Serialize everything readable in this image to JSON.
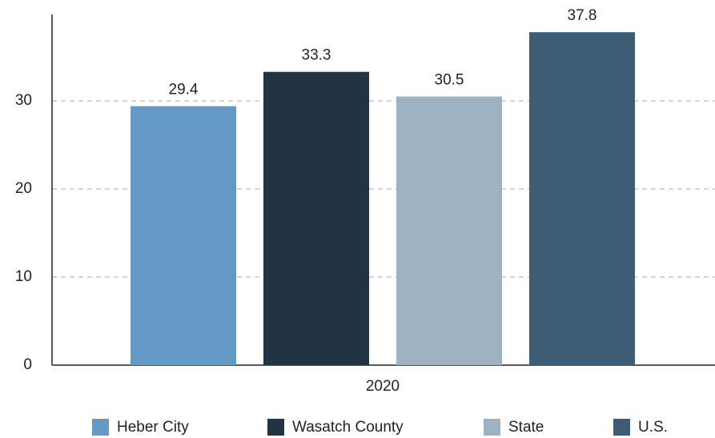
{
  "chart_data": {
    "type": "bar",
    "categories": [
      "2020"
    ],
    "series": [
      {
        "name": "Heber City",
        "color": "#6399c4",
        "values": [
          29.4
        ]
      },
      {
        "name": "Wasatch County",
        "color": "#233545",
        "values": [
          33.3
        ]
      },
      {
        "name": "State",
        "color": "#9cb2c2",
        "values": [
          30.5
        ]
      },
      {
        "name": "U.S.",
        "color": "#3d5c75",
        "values": [
          37.8
        ]
      }
    ],
    "ylim": [
      0,
      40
    ],
    "yticks": [
      0,
      10,
      20,
      30
    ],
    "grid": true,
    "legend": "bottom"
  }
}
